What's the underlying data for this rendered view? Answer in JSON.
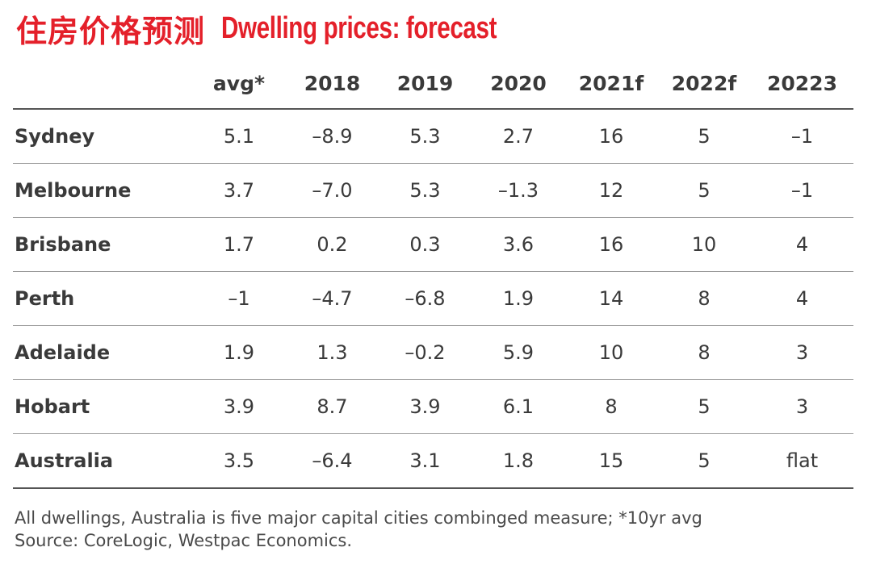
{
  "title": {
    "zh": "住房价格预测",
    "en": "Dwelling prices: forecast"
  },
  "colors": {
    "accent": "#e4202a",
    "text": "#3a3a3a",
    "rule": "#555555"
  },
  "chart_data": {
    "type": "table",
    "title": "Dwelling prices: forecast",
    "columns": [
      "",
      "avg*",
      "2018",
      "2019",
      "2020",
      "2021f",
      "2022f",
      "20223"
    ],
    "rows": [
      {
        "city": "Sydney",
        "values": [
          "5.1",
          "–8.9",
          "5.3",
          "2.7",
          "16",
          "5",
          "–1"
        ]
      },
      {
        "city": "Melbourne",
        "values": [
          "3.7",
          "–7.0",
          "5.3",
          "–1.3",
          "12",
          "5",
          "–1"
        ]
      },
      {
        "city": "Brisbane",
        "values": [
          "1.7",
          "0.2",
          "0.3",
          "3.6",
          "16",
          "10",
          "4"
        ]
      },
      {
        "city": "Perth",
        "values": [
          "–1",
          "–4.7",
          "–6.8",
          "1.9",
          "14",
          "8",
          "4"
        ]
      },
      {
        "city": "Adelaide",
        "values": [
          "1.9",
          "1.3",
          "–0.2",
          "5.9",
          "10",
          "8",
          "3"
        ]
      },
      {
        "city": "Hobart",
        "values": [
          "3.9",
          "8.7",
          "3.9",
          "6.1",
          "8",
          "5",
          "3"
        ]
      },
      {
        "city": "Australia",
        "values": [
          "3.5",
          "–6.4",
          "3.1",
          "1.8",
          "15",
          "5",
          "flat"
        ]
      }
    ]
  },
  "footnote": {
    "line1": "All dwellings, Australia is five major capital cities combinged measure; *10yr avg",
    "line2": "Source: CoreLogic, Westpac Economics."
  }
}
